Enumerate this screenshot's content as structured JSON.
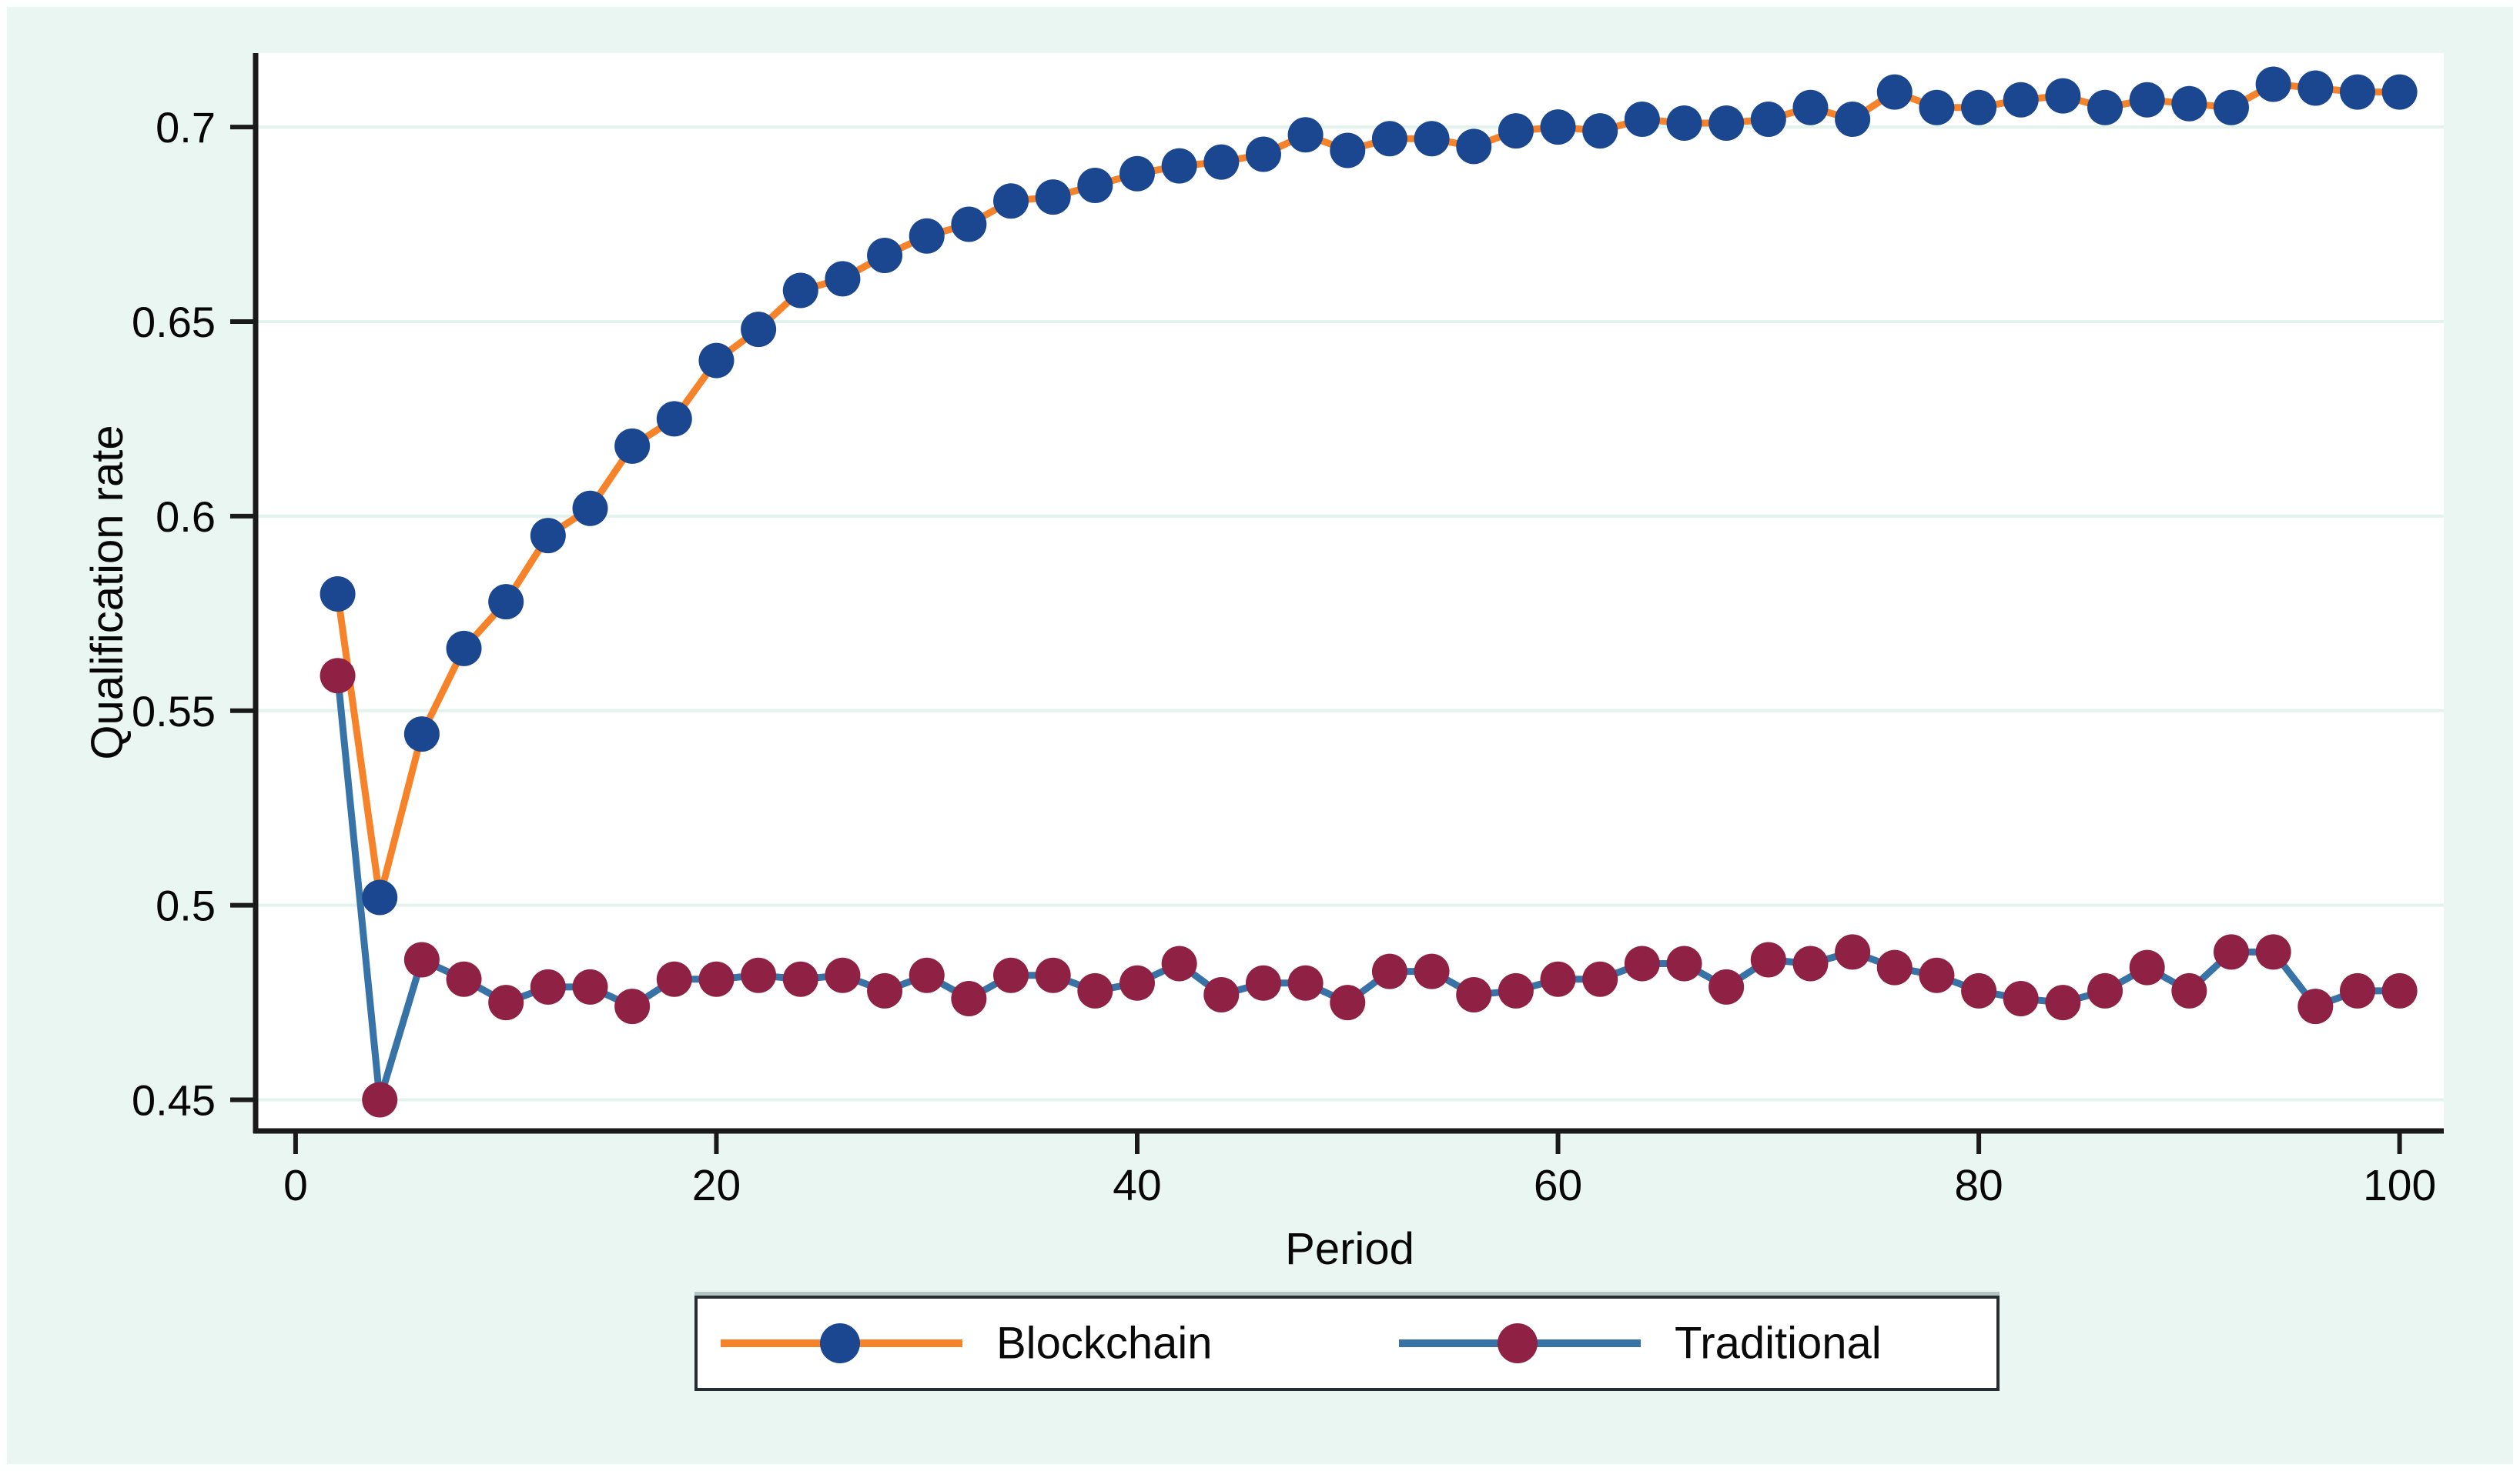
{
  "figure": {
    "background": "#eaf6f2",
    "plot_background": "#ffffff",
    "gridline_color": "#e2f3ed",
    "axis_color": "#1a1a1a",
    "text_color": "#060606"
  },
  "chart_data": {
    "type": "line",
    "title": "",
    "xlabel": "Period",
    "ylabel": "Qualification rate",
    "xlim": [
      -1.9,
      102.1
    ],
    "ylim": [
      0.442,
      0.719
    ],
    "grid": "horizontal",
    "legend_position": "bottom-box",
    "x_tick_values": [
      0,
      20,
      40,
      60,
      80,
      100
    ],
    "x_tick_labels": [
      "0",
      "20",
      "40",
      "60",
      "80",
      "100"
    ],
    "y_tick_values": [
      0.45,
      0.5,
      0.55,
      0.6,
      0.65,
      0.7
    ],
    "y_tick_labels": [
      "0.45",
      "0.5",
      "0.55",
      "0.6",
      "0.65",
      "0.7"
    ],
    "x": [
      2,
      4,
      6,
      8,
      10,
      12,
      14,
      16,
      18,
      20,
      22,
      24,
      26,
      28,
      30,
      32,
      34,
      36,
      38,
      40,
      42,
      44,
      46,
      48,
      50,
      52,
      54,
      56,
      58,
      60,
      62,
      64,
      66,
      68,
      70,
      72,
      74,
      76,
      78,
      80,
      82,
      84,
      86,
      88,
      90,
      92,
      94,
      96,
      98,
      100
    ],
    "series": [
      {
        "name": "Blockchain",
        "line_color": "#f68229",
        "marker_color": "#1a478f",
        "marker": "circle",
        "values": [
          0.58,
          0.502,
          0.544,
          0.566,
          0.578,
          0.595,
          0.602,
          0.618,
          0.625,
          0.64,
          0.648,
          0.658,
          0.661,
          0.667,
          0.672,
          0.675,
          0.681,
          0.682,
          0.685,
          0.688,
          0.69,
          0.691,
          0.693,
          0.698,
          0.694,
          0.697,
          0.697,
          0.695,
          0.699,
          0.7,
          0.699,
          0.702,
          0.701,
          0.701,
          0.702,
          0.705,
          0.702,
          0.709,
          0.705,
          0.705,
          0.707,
          0.708,
          0.705,
          0.707,
          0.706,
          0.705,
          0.711,
          0.71,
          0.709,
          0.709
        ]
      },
      {
        "name": "Traditional",
        "line_color": "#3873a8",
        "marker_color": "#8f2144",
        "marker": "circle",
        "values": [
          0.559,
          0.45,
          0.486,
          0.481,
          0.475,
          0.479,
          0.479,
          0.474,
          0.481,
          0.481,
          0.482,
          0.481,
          0.482,
          0.478,
          0.482,
          0.476,
          0.482,
          0.482,
          0.478,
          0.48,
          0.485,
          0.477,
          0.48,
          0.48,
          0.475,
          0.483,
          0.483,
          0.477,
          0.478,
          0.481,
          0.481,
          0.485,
          0.485,
          0.479,
          0.486,
          0.485,
          0.488,
          0.484,
          0.482,
          0.478,
          0.476,
          0.475,
          0.478,
          0.484,
          0.478,
          0.488,
          0.488,
          0.474,
          0.478,
          0.478
        ]
      }
    ]
  }
}
